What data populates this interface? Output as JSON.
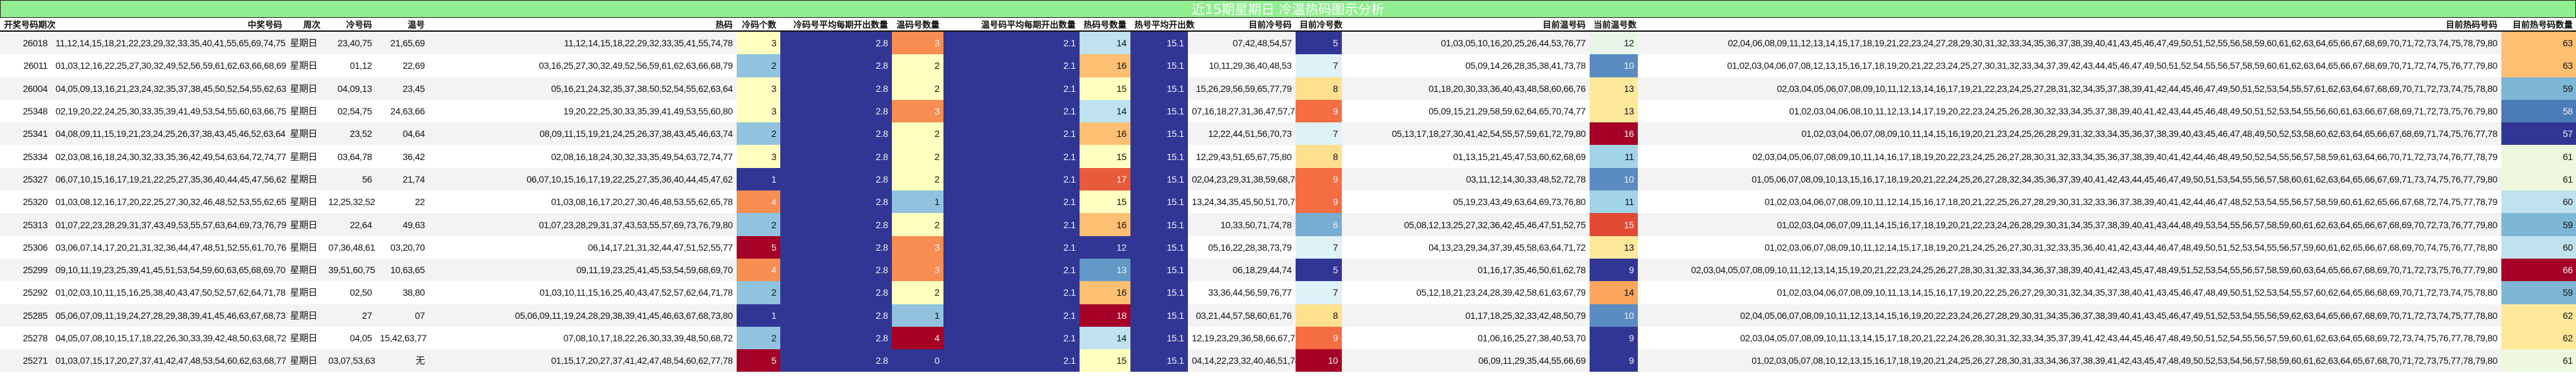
{
  "title": "近15期星期日 冷温热码图示分析",
  "headers": [
    "开奖号码期次",
    "中奖号码",
    "周次",
    "冷号码",
    "温号",
    "热码",
    "冷码个数",
    "冷码号平均每期开出数量",
    "温码号数量",
    "温号码平均每期开出数量",
    "热码号数量",
    "热号平均开出数",
    "目前冷号码",
    "目前冷号数",
    "目前温号码",
    "当前温号数",
    "目前热码号码",
    "目前热号码数量"
  ],
  "colors": {
    "title_bg": "#90ee90",
    "navy": "#313695",
    "light_yellow": "#ffffbf",
    "orange": "#f88d52",
    "red": "#a50026"
  },
  "rows": [
    {
      "period": "26018",
      "numbers": "11,12,14,15,18,21,22,23,29,32,33,35,40,41,55,65,69,74,75,78",
      "week": "星期日",
      "cold": "23,40,75",
      "warm": "21,65,69",
      "hot": "11,12,14,15,18,22,29,32,33,35,41,55,74,78",
      "cold_n": "3",
      "cold_avg": "2.8",
      "warm_n": "3",
      "warm_avg": "2.1",
      "hot_n": "14",
      "hot_avg": "15.1",
      "cur_cold": "07,42,48,54,57",
      "cur_cold_n": "5",
      "cur_warm": "01,03,05,10,16,20,25,26,44,53,76,77",
      "cur_warm_n": "12",
      "cur_hot": "02,04,06,08,09,11,12,13,14,15,17,18,19,21,22,23,24,27,28,29,30,31,32,33,34,35,36,37,38,39,40,41,43,45,46,47,49,50,51,52,55,56,58,59,60,61,62,63,64,65,66,67,68,69,70,71,72,73,74,75,78,79,80",
      "cur_hot_n": "63",
      "bg": {
        "cold_n": "#ffffbf",
        "warm_n": "#f88d52",
        "hot_n": "#c0e2ee",
        "cur_cold_n": "#313695",
        "cur_warm_n": "#e9f5e8",
        "cur_hot_n": "#fdbf71"
      }
    },
    {
      "period": "26011",
      "numbers": "01,03,12,16,22,25,27,30,32,49,52,56,59,61,62,63,66,68,69,79",
      "week": "星期日",
      "cold": "01,12",
      "warm": "22,69",
      "hot": "03,16,25,27,30,32,49,52,56,59,61,62,63,66,68,79",
      "cold_n": "2",
      "cold_avg": "2.8",
      "warm_n": "2",
      "warm_avg": "2.1",
      "hot_n": "16",
      "hot_avg": "15.1",
      "cur_cold": "10,11,29,36,40,48,53",
      "cur_cold_n": "7",
      "cur_warm": "05,09,14,26,28,35,38,41,73,78",
      "cur_warm_n": "10",
      "cur_hot": "01,02,03,04,06,07,08,12,13,15,16,17,18,19,20,21,22,23,24,25,27,30,31,32,33,34,37,39,42,43,44,45,46,47,49,50,51,52,54,55,56,57,58,59,60,61,62,63,64,65,66,67,68,69,70,71,72,74,75,76,77,79,80",
      "cur_hot_n": "63",
      "bg": {
        "cold_n": "#91c3de",
        "warm_n": "#ffffbf",
        "hot_n": "#fdbf71",
        "cur_cold_n": "#def2f7",
        "cur_warm_n": "#5a8cc1",
        "cur_hot_n": "#fdbf71"
      }
    },
    {
      "period": "26004",
      "numbers": "04,05,09,13,16,21,23,24,32,35,37,38,45,50,52,54,55,62,63,64",
      "week": "星期日",
      "cold": "04,09,13",
      "warm": "23,45",
      "hot": "05,16,21,24,32,35,37,38,50,52,54,55,62,63,64",
      "cold_n": "3",
      "cold_avg": "2.8",
      "warm_n": "2",
      "warm_avg": "2.1",
      "hot_n": "15",
      "hot_avg": "15.1",
      "cur_cold": "15,26,29,56,59,65,77,79",
      "cur_cold_n": "8",
      "cur_warm": "01,18,20,30,33,36,40,43,48,58,60,66,76",
      "cur_warm_n": "13",
      "cur_hot": "02,03,04,05,06,07,08,09,10,11,12,13,14,16,17,19,21,22,23,24,25,27,28,31,32,34,35,37,38,39,41,42,44,45,46,47,49,50,51,52,53,54,55,57,61,62,63,64,67,68,69,70,71,72,73,74,75,78,80",
      "cur_hot_n": "59",
      "bg": {
        "cold_n": "#ffffbf",
        "warm_n": "#ffffbf",
        "hot_n": "#ffffbf",
        "cur_cold_n": "#fee08f",
        "cur_warm_n": "#fee99a",
        "cur_hot_n": "#7eb6d6"
      }
    },
    {
      "period": "25348",
      "numbers": "02,19,20,22,24,25,30,33,35,39,41,49,53,54,55,60,63,66,75,80",
      "week": "星期日",
      "cold": "02,54,75",
      "warm": "24,63,66",
      "hot": "19,20,22,25,30,33,35,39,41,49,53,55,60,80",
      "cold_n": "3",
      "cold_avg": "2.8",
      "warm_n": "3",
      "warm_avg": "2.1",
      "hot_n": "14",
      "hot_avg": "15.1",
      "cur_cold": "07,16,18,27,31,36,47,57,78",
      "cur_cold_n": "9",
      "cur_warm": "05,09,15,21,29,58,59,62,64,65,70,74,77",
      "cur_warm_n": "13",
      "cur_hot": "01,02,03,04,06,08,10,11,12,13,14,17,19,20,22,23,24,25,26,28,30,32,33,34,35,37,38,39,40,41,42,43,44,45,46,48,49,50,51,52,53,54,55,56,60,61,63,66,67,68,69,71,72,73,75,76,79,80",
      "cur_hot_n": "58",
      "bg": {
        "cold_n": "#ffffbf",
        "warm_n": "#f88d52",
        "hot_n": "#c0e2ee",
        "cur_cold_n": "#f46d43",
        "cur_warm_n": "#fee99a",
        "cur_hot_n": "#4a7bb7"
      }
    },
    {
      "period": "25341",
      "numbers": "04,08,09,11,15,19,21,23,24,25,26,37,38,43,45,46,52,63,64,74",
      "week": "星期日",
      "cold": "23,52",
      "warm": "04,64",
      "hot": "08,09,11,15,19,21,24,25,26,37,38,43,45,46,63,74",
      "cold_n": "2",
      "cold_avg": "2.8",
      "warm_n": "2",
      "warm_avg": "2.1",
      "hot_n": "16",
      "hot_avg": "15.1",
      "cur_cold": "12,22,44,51,56,70,73",
      "cur_cold_n": "7",
      "cur_warm": "05,13,17,18,27,30,41,42,54,55,57,59,61,72,79,80",
      "cur_warm_n": "16",
      "cur_hot": "01,02,03,04,06,07,08,09,10,11,14,15,16,19,20,21,23,24,25,26,28,29,31,32,33,34,35,36,37,38,39,40,43,45,46,47,48,49,50,52,53,58,60,62,63,64,65,66,67,68,69,71,74,75,76,77,78",
      "cur_hot_n": "57",
      "bg": {
        "cold_n": "#91c3de",
        "warm_n": "#ffffbf",
        "hot_n": "#fdbf71",
        "cur_cold_n": "#def2f7",
        "cur_warm_n": "#a50026",
        "cur_hot_n": "#313695"
      }
    },
    {
      "period": "25334",
      "numbers": "02,03,08,16,18,24,30,32,33,35,36,42,49,54,63,64,72,74,77,78",
      "week": "星期日",
      "cold": "03,64,78",
      "warm": "36,42",
      "hot": "02,08,16,18,24,30,32,33,35,49,54,63,72,74,77",
      "cold_n": "3",
      "cold_avg": "2.8",
      "warm_n": "2",
      "warm_avg": "2.1",
      "hot_n": "15",
      "hot_avg": "15.1",
      "cur_cold": "12,29,43,51,65,67,75,80",
      "cur_cold_n": "8",
      "cur_warm": "01,13,15,21,45,47,53,60,62,68,69",
      "cur_warm_n": "11",
      "cur_hot": "02,03,04,05,06,07,08,09,10,11,14,16,17,18,19,20,22,23,24,25,26,27,28,30,31,32,33,34,35,36,37,38,39,40,41,42,44,46,48,49,50,52,54,55,56,57,58,59,61,63,64,66,70,71,72,73,74,76,77,78,79",
      "cur_hot_n": "61",
      "bg": {
        "cold_n": "#ffffbf",
        "warm_n": "#ffffbf",
        "hot_n": "#ffffbf",
        "cur_cold_n": "#fee08f",
        "cur_warm_n": "#a3d3e6",
        "cur_hot_n": "#edf8df"
      }
    },
    {
      "period": "25327",
      "numbers": "06,07,10,15,16,17,19,21,22,25,27,35,36,40,44,45,47,56,62,74",
      "week": "星期日",
      "cold": "56",
      "warm": "21,74",
      "hot": "06,07,10,15,16,17,19,22,25,27,35,36,40,44,45,47,62",
      "cold_n": "1",
      "cold_avg": "2.8",
      "warm_n": "2",
      "warm_avg": "2.1",
      "hot_n": "17",
      "hot_avg": "15.1",
      "cur_cold": "02,04,23,29,31,38,59,68,70",
      "cur_cold_n": "9",
      "cur_warm": "03,11,12,14,30,33,48,52,72,78",
      "cur_warm_n": "10",
      "cur_hot": "01,05,06,07,08,09,10,13,15,16,17,18,19,20,21,22,24,25,26,27,28,32,34,35,36,37,39,40,41,42,43,44,45,46,47,49,50,51,53,54,55,56,57,58,60,61,62,63,64,65,66,67,69,71,73,74,75,76,77,79,80",
      "cur_hot_n": "61",
      "bg": {
        "cold_n": "#313695",
        "warm_n": "#ffffbf",
        "hot_n": "#e75b3a",
        "cur_cold_n": "#f46d43",
        "cur_warm_n": "#5a8cc1",
        "cur_hot_n": "#edf8df"
      }
    },
    {
      "period": "25320",
      "numbers": "01,03,08,12,16,17,20,22,25,27,30,32,46,48,52,53,55,62,65,78",
      "week": "星期日",
      "cold": "12,25,32,52",
      "warm": "22",
      "hot": "01,03,08,16,17,20,27,30,46,48,53,55,62,65,78",
      "cold_n": "4",
      "cold_avg": "2.8",
      "warm_n": "1",
      "warm_avg": "2.1",
      "hot_n": "15",
      "hot_avg": "15.1",
      "cur_cold": "13,24,34,35,45,50,51,70,71",
      "cur_cold_n": "9",
      "cur_warm": "05,19,23,43,49,63,64,69,73,76,80",
      "cur_warm_n": "11",
      "cur_hot": "01,02,03,04,06,07,08,09,10,11,12,14,15,16,17,18,20,21,22,25,26,27,28,29,30,31,32,33,36,37,38,39,40,41,42,44,46,47,48,52,53,54,55,56,57,58,59,60,61,62,65,66,67,68,72,74,75,77,78,79",
      "cur_hot_n": "60",
      "bg": {
        "cold_n": "#f88d52",
        "warm_n": "#91c3de",
        "hot_n": "#ffffbf",
        "cur_cold_n": "#f46d43",
        "cur_warm_n": "#a3d3e6",
        "cur_hot_n": "#c0e2ee"
      }
    },
    {
      "period": "25313",
      "numbers": "01,07,22,23,28,29,31,37,43,49,53,55,57,63,64,69,73,76,79,80",
      "week": "星期日",
      "cold": "22,64",
      "warm": "49,63",
      "hot": "01,07,23,28,29,31,37,43,53,55,57,69,73,76,79,80",
      "cold_n": "2",
      "cold_avg": "2.8",
      "warm_n": "2",
      "warm_avg": "2.1",
      "hot_n": "16",
      "hot_avg": "15.1",
      "cur_cold": "10,33,50,71,74,78",
      "cur_cold_n": "6",
      "cur_warm": "05,08,12,13,25,27,32,36,42,45,46,47,51,52,75",
      "cur_warm_n": "15",
      "cur_hot": "01,02,03,04,06,07,09,11,14,15,16,17,18,19,20,21,22,23,24,26,28,29,30,31,34,35,37,38,39,40,41,43,44,48,49,53,54,55,56,57,58,59,60,61,62,63,64,65,66,67,68,69,70,72,73,76,77,79,80",
      "cur_hot_n": "59",
      "bg": {
        "cold_n": "#91c3de",
        "warm_n": "#ffffbf",
        "hot_n": "#fdbf71",
        "cur_cold_n": "#77add2",
        "cur_warm_n": "#e34a33",
        "cur_hot_n": "#7eb6d6"
      }
    },
    {
      "period": "25306",
      "numbers": "03,06,07,14,17,20,21,31,32,36,44,47,48,51,52,55,61,70,76,77",
      "week": "星期日",
      "cold": "07,36,48,61,76",
      "warm": "03,20,70",
      "hot": "06,14,17,21,31,32,44,47,51,52,55,77",
      "cold_n": "5",
      "cold_avg": "2.8",
      "warm_n": "3",
      "warm_avg": "2.1",
      "hot_n": "12",
      "hot_avg": "15.1",
      "cur_cold": "05,16,22,28,38,73,79",
      "cur_cold_n": "7",
      "cur_warm": "04,13,23,29,34,37,39,45,58,63,64,71,72",
      "cur_warm_n": "13",
      "cur_hot": "01,02,03,06,07,08,09,10,11,12,14,15,17,18,19,20,21,24,25,26,27,30,31,32,33,35,36,40,41,42,43,44,46,47,48,49,50,51,52,53,54,55,56,57,59,60,61,62,65,66,67,68,69,70,74,75,76,77,78,80",
      "cur_hot_n": "60",
      "bg": {
        "cold_n": "#a50026",
        "warm_n": "#f88d52",
        "hot_n": "#313695",
        "cur_cold_n": "#def2f7",
        "cur_warm_n": "#fee99a",
        "cur_hot_n": "#c0e2ee"
      }
    },
    {
      "period": "25299",
      "numbers": "09,10,11,19,23,25,39,41,45,51,53,54,59,60,63,65,68,69,70,75",
      "week": "星期日",
      "cold": "39,51,60,75",
      "warm": "10,63,65",
      "hot": "09,11,19,23,25,41,45,53,54,59,68,69,70",
      "cold_n": "4",
      "cold_avg": "2.8",
      "warm_n": "3",
      "warm_avg": "2.1",
      "hot_n": "13",
      "hot_avg": "15.1",
      "cur_cold": "06,18,29,44,74",
      "cur_cold_n": "5",
      "cur_warm": "01,16,17,35,46,50,61,62,78",
      "cur_warm_n": "9",
      "cur_hot": "02,03,04,05,07,08,09,10,11,12,13,14,15,19,20,21,22,23,24,25,26,27,28,30,31,32,33,34,36,37,38,39,40,41,42,43,45,47,48,49,51,52,53,54,55,56,57,58,59,60,63,64,65,66,67,68,69,70,71,72,73,75,76,77,79,80",
      "cur_hot_n": "66",
      "bg": {
        "cold_n": "#f88d52",
        "warm_n": "#f88d52",
        "hot_n": "#6399c7",
        "cur_cold_n": "#313695",
        "cur_warm_n": "#313695",
        "cur_hot_n": "#a50026"
      }
    },
    {
      "period": "25292",
      "numbers": "01,02,03,10,11,15,16,25,38,40,43,47,50,52,57,62,64,71,78,80",
      "week": "星期日",
      "cold": "02,50",
      "warm": "38,80",
      "hot": "01,03,10,11,15,16,25,40,43,47,52,57,62,64,71,78",
      "cold_n": "2",
      "cold_avg": "2.8",
      "warm_n": "2",
      "warm_avg": "2.1",
      "hot_n": "16",
      "hot_avg": "15.1",
      "cur_cold": "33,36,44,56,59,76,77",
      "cur_cold_n": "7",
      "cur_warm": "05,12,18,21,23,24,28,39,42,58,61,63,67,79",
      "cur_warm_n": "14",
      "cur_hot": "01,02,03,04,06,07,08,09,10,11,13,14,15,16,17,19,20,22,25,26,27,29,30,31,32,34,35,37,38,40,41,43,45,46,47,48,49,50,51,52,53,54,55,57,60,62,64,65,66,68,69,70,71,72,73,74,75,78,80",
      "cur_hot_n": "59",
      "bg": {
        "cold_n": "#91c3de",
        "warm_n": "#ffffbf",
        "hot_n": "#fdbf71",
        "cur_cold_n": "#def2f7",
        "cur_warm_n": "#fca55d",
        "cur_hot_n": "#7eb6d6"
      }
    },
    {
      "period": "25285",
      "numbers": "05,06,07,09,11,19,24,27,28,29,38,39,41,45,46,63,67,68,73,80",
      "week": "星期日",
      "cold": "27",
      "warm": "07",
      "hot": "05,06,09,11,19,24,28,29,38,39,41,45,46,63,67,68,73,80",
      "cold_n": "1",
      "cold_avg": "2.8",
      "warm_n": "1",
      "warm_avg": "2.1",
      "hot_n": "18",
      "hot_avg": "15.1",
      "cur_cold": "03,21,44,57,58,60,61,76",
      "cur_cold_n": "8",
      "cur_warm": "01,17,18,25,32,33,42,48,50,79",
      "cur_warm_n": "10",
      "cur_hot": "02,04,05,06,07,08,09,10,11,12,13,14,15,16,19,20,22,23,24,26,27,28,29,30,31,34,35,36,37,38,39,40,41,43,45,46,47,49,51,52,53,54,55,56,59,62,63,64,65,66,67,68,69,70,71,72,73,74,75,77,78,80",
      "cur_hot_n": "62",
      "bg": {
        "cold_n": "#313695",
        "warm_n": "#91c3de",
        "hot_n": "#a50026",
        "cur_cold_n": "#fee08f",
        "cur_warm_n": "#5a8cc1",
        "cur_hot_n": "#fee99a"
      }
    },
    {
      "period": "25278",
      "numbers": "04,05,07,08,10,15,17,18,22,26,30,33,39,42,48,50,63,68,72,77",
      "week": "星期日",
      "cold": "04,05",
      "warm": "15,42,63,77",
      "hot": "07,08,10,17,18,22,26,30,33,39,48,50,68,72",
      "cold_n": "2",
      "cold_avg": "2.8",
      "warm_n": "4",
      "warm_avg": "2.1",
      "hot_n": "14",
      "hot_avg": "15.1",
      "cur_cold": "12,19,23,29,36,58,66,67,71",
      "cur_cold_n": "9",
      "cur_warm": "01,06,16,25,27,38,40,53,70",
      "cur_warm_n": "9",
      "cur_hot": "02,03,04,05,07,08,09,10,11,13,14,15,17,18,20,21,22,24,26,28,30,31,32,33,34,35,37,39,41,42,43,44,45,46,47,48,49,50,51,52,54,55,56,57,59,60,61,62,63,64,65,68,69,72,73,74,75,76,77,78,79,80",
      "cur_hot_n": "62",
      "bg": {
        "cold_n": "#91c3de",
        "warm_n": "#a50026",
        "hot_n": "#c0e2ee",
        "cur_cold_n": "#f46d43",
        "cur_warm_n": "#313695",
        "cur_hot_n": "#fee99a"
      }
    },
    {
      "period": "25271",
      "numbers": "01,03,07,15,17,20,27,37,41,42,47,48,53,54,60,62,63,68,77,78",
      "week": "星期日",
      "cold": "03,07,53,63,68",
      "warm": "无",
      "hot": "01,15,17,20,27,37,41,42,47,48,54,60,62,77,78",
      "cold_n": "5",
      "cold_avg": "2.8",
      "warm_n": "0",
      "warm_avg": "2.1",
      "hot_n": "15",
      "hot_avg": "15.1",
      "cur_cold": "04,14,22,23,32,40,46,51,74,76",
      "cur_cold_n": "10",
      "cur_warm": "06,09,11,29,35,44,55,66,69",
      "cur_warm_n": "9",
      "cur_hot": "01,02,03,05,07,08,10,12,13,15,16,17,18,19,20,21,24,25,26,27,28,30,31,33,34,36,37,38,39,41,42,43,45,47,48,49,50,52,53,54,56,57,58,59,60,61,62,63,64,65,67,68,70,71,72,73,75,77,78,79,80",
      "cur_hot_n": "61",
      "bg": {
        "cold_n": "#a50026",
        "warm_n": "#313695",
        "hot_n": "#ffffbf",
        "cur_cold_n": "#a50026",
        "cur_warm_n": "#313695",
        "cur_hot_n": "#edf8df"
      }
    }
  ]
}
